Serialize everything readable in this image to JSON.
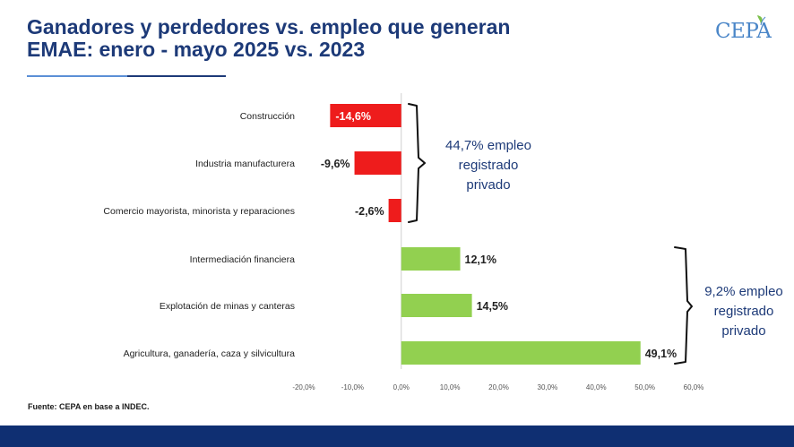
{
  "header": {
    "title_line1": "Ganadores y perdedores vs. empleo que generan",
    "title_line2": "EMAE: enero - mayo 2025 vs. 2023",
    "logo_text": "CEPA",
    "logo_icon": "leaf-icon"
  },
  "source": "Fuente: CEPA en base a INDEC.",
  "colors": {
    "negative": "#ee1c1c",
    "positive": "#92d050",
    "title": "#1d3a78",
    "footer": "#0f2f72"
  },
  "chart_data": {
    "type": "bar",
    "orientation": "horizontal",
    "categories": [
      "Construcción",
      "Industria manufacturera",
      "Comercio mayorista, minorista y reparaciones",
      "Intermediación financiera",
      "Explotación de minas y canteras",
      "Agricultura, ganadería, caza y silvicultura"
    ],
    "values": [
      -14.6,
      -9.6,
      -2.6,
      12.1,
      14.5,
      49.1
    ],
    "value_labels": [
      "-14,6%",
      "-9,6%",
      "-2,6%",
      "12,1%",
      "14,5%",
      "49,1%"
    ],
    "xlim": [
      -20,
      60
    ],
    "xticks": [
      -20,
      -10,
      0,
      10,
      20,
      30,
      40,
      50,
      60
    ],
    "xtick_labels": [
      "-20,0%",
      "-10,0%",
      "0,0%",
      "10,0%",
      "20,0%",
      "30,0%",
      "40,0%",
      "50,0%",
      "60,0%"
    ],
    "grid": false,
    "annotations": [
      {
        "lines": [
          "44,7% empleo",
          "registrado",
          "privado"
        ],
        "groups": [
          0,
          1,
          2
        ],
        "side": "right-of-zero"
      },
      {
        "lines": [
          "9,2% empleo",
          "registrado",
          "privado"
        ],
        "groups": [
          3,
          4,
          5
        ],
        "side": "right"
      }
    ]
  }
}
